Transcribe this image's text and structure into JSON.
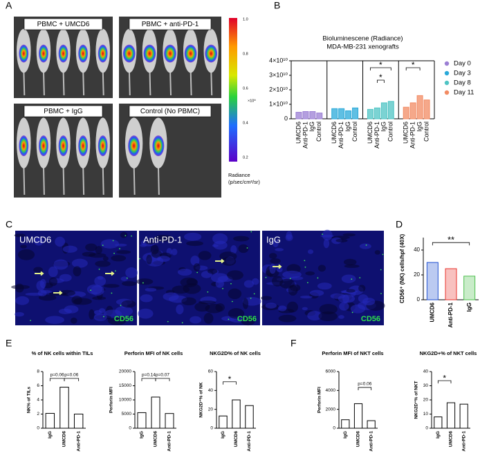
{
  "panels": {
    "a": {
      "letter": "A",
      "images": [
        "PBMC + UMCD6",
        "PBMC + anti-PD-1",
        "PBMC +  IgG",
        "Control (No PBMC)"
      ],
      "colorbar": {
        "ticks": [
          "1.0",
          "0.8",
          "0.6",
          "0.4",
          "0.2"
        ],
        "multiplier": "×10⁸",
        "label": "Radiance",
        "unit": "(p/sec/cm²/sr)"
      }
    },
    "b": {
      "letter": "B"
    },
    "c": {
      "letter": "C",
      "images": [
        {
          "label": "UMCD6",
          "stain": "CD56"
        },
        {
          "label": "Anti-PD-1",
          "stain": "CD56"
        },
        {
          "label": "IgG",
          "stain": "CD56"
        }
      ]
    },
    "d": {
      "letter": "D"
    },
    "e": {
      "letter": "E"
    },
    "f": {
      "letter": "F"
    }
  },
  "chart_data": [
    {
      "type": "grouped_bar",
      "title": "Bioluminescene (Radiance)",
      "subtitle": "MDA-MB-231 xenografts",
      "categories": [
        "UMCD6",
        "Anti-PD-1",
        "IgG",
        "Control"
      ],
      "series": [
        {
          "name": "Day 0",
          "color": "#9b7fd4",
          "values": [
            4500000000,
            5000000000,
            5000000000,
            4000000000
          ]
        },
        {
          "name": "Day 3",
          "color": "#29a9d9",
          "values": [
            7000000000,
            7000000000,
            5500000000,
            7500000000
          ]
        },
        {
          "name": "Day 8",
          "color": "#4fc4c4",
          "values": [
            6500000000,
            7500000000,
            11000000000,
            12000000000
          ]
        },
        {
          "name": "Day 11",
          "color": "#f28b63",
          "values": [
            8000000000,
            11000000000,
            16000000000,
            13000000000
          ]
        }
      ],
      "ylim": [
        0,
        40000000000
      ],
      "yticks": [
        0,
        {
          "value": 10000000000,
          "label": "1×10¹⁰"
        },
        {
          "value": 20000000000,
          "label": "2×10¹⁰"
        },
        {
          "value": 30000000000,
          "label": "3×10¹⁰"
        },
        {
          "value": 40000000000,
          "label": "4×10¹⁰"
        }
      ],
      "annotations": [
        "*",
        "*",
        "*"
      ]
    },
    {
      "type": "bar",
      "ylabel": "CD56⁺ (NK) cells/hpf (40X)",
      "categories": [
        "UMCD6",
        "Anti-PD-1",
        "IgG"
      ],
      "values": [
        30,
        25,
        19
      ],
      "colors": [
        "#1f4fd1",
        "#e8322b",
        "#4cbf4c"
      ],
      "ylim": [
        0,
        50
      ],
      "yticks": [
        0,
        20,
        40
      ],
      "annotations": [
        "**"
      ]
    },
    {
      "type": "bar",
      "title": "% of NK cells within TILs",
      "ylabel": "NK% of TILs",
      "categories": [
        "IgG",
        "UMCD6",
        "Anti-PD-1"
      ],
      "values": [
        2.1,
        5.8,
        2.0
      ],
      "color": "#ffffff",
      "ylim": [
        0,
        8
      ],
      "yticks": [
        0,
        2,
        4,
        6,
        8
      ],
      "annotations": [
        "p=0.06",
        "p=0.06"
      ]
    },
    {
      "type": "bar",
      "title": "Perforin MFI of NK cells",
      "ylabel": "Perforin MFI",
      "categories": [
        "IgG",
        "UMCD6",
        "Anti-PD-1"
      ],
      "values": [
        5500,
        11000,
        5200
      ],
      "color": "#ffffff",
      "ylim": [
        0,
        20000
      ],
      "yticks": [
        0,
        5000,
        10000,
        15000,
        20000
      ],
      "annotations": [
        "p=0.14",
        "p=0.07"
      ]
    },
    {
      "type": "bar",
      "title": "NKG2D% of NK cells",
      "ylabel": "NKG2D⁺% of NK",
      "categories": [
        "IgG",
        "UMCD6",
        "Anti-PD-1"
      ],
      "values": [
        13,
        30,
        24
      ],
      "color": "#ffffff",
      "ylim": [
        0,
        60
      ],
      "yticks": [
        0,
        20,
        40,
        60
      ],
      "annotations": [
        "*"
      ]
    },
    {
      "type": "bar",
      "title": "Perforin MFI of NKT cells",
      "ylabel": "Perforin MFI",
      "categories": [
        "IgG",
        "UMCD6",
        "Anti-PD-1"
      ],
      "values": [
        900,
        2600,
        800
      ],
      "color": "#ffffff",
      "ylim": [
        0,
        6000
      ],
      "yticks": [
        0,
        2000,
        4000,
        6000
      ],
      "annotations": [
        "p=0.06"
      ]
    },
    {
      "type": "bar",
      "title": "NKG2D+% of NKT cells",
      "ylabel": "NKG2D⁺% of NKT",
      "categories": [
        "IgG",
        "UMCD6",
        "Anti-PD-1"
      ],
      "values": [
        8,
        18,
        17
      ],
      "color": "#ffffff",
      "ylim": [
        0,
        40
      ],
      "yticks": [
        0,
        10,
        20,
        30,
        40
      ],
      "annotations": [
        "*"
      ]
    }
  ]
}
